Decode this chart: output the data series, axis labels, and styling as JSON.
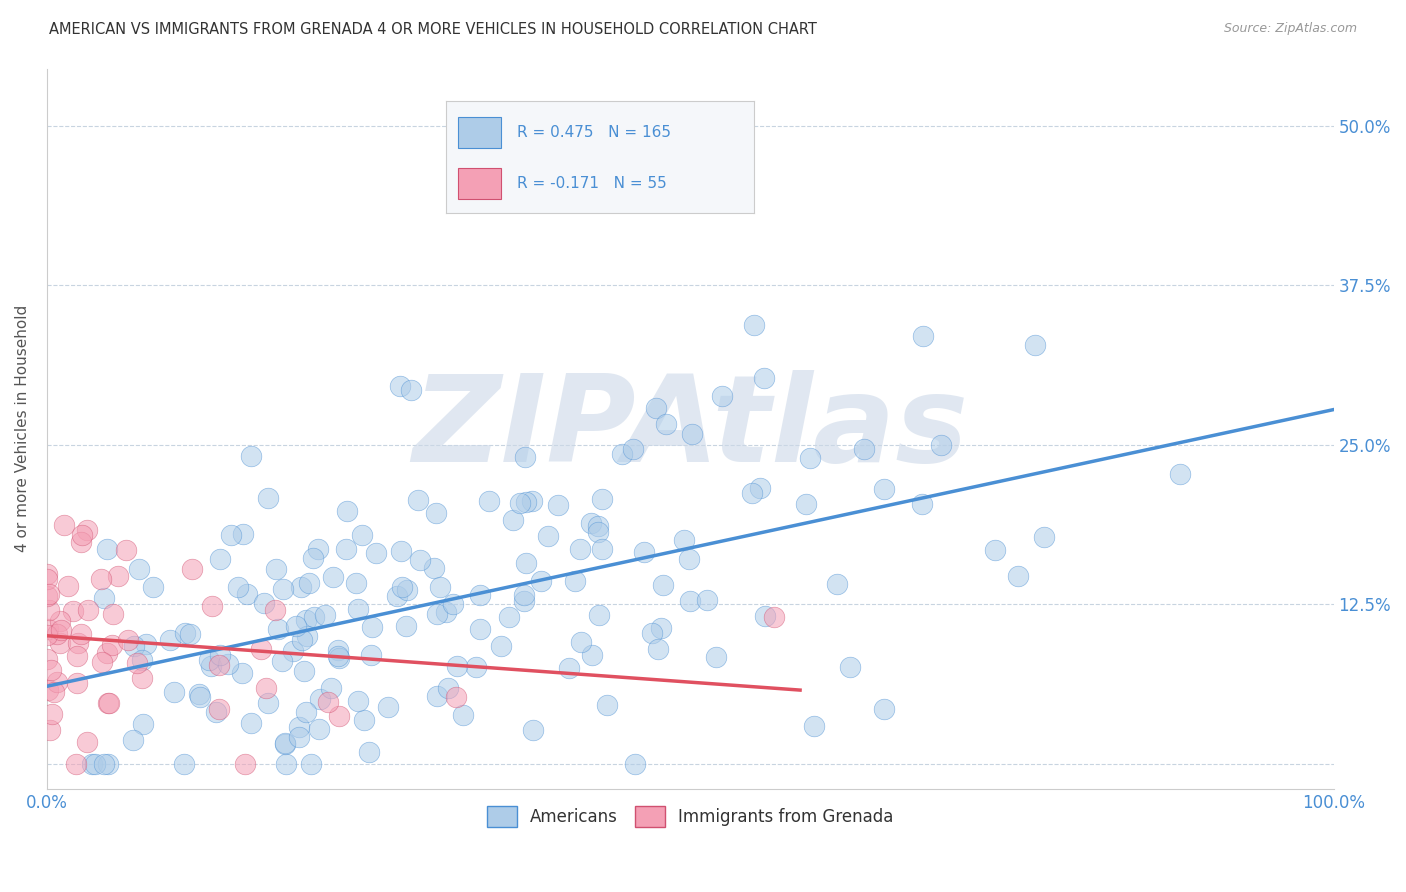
{
  "title": "AMERICAN VS IMMIGRANTS FROM GRENADA 4 OR MORE VEHICLES IN HOUSEHOLD CORRELATION CHART",
  "source": "Source: ZipAtlas.com",
  "ylabel": "4 or more Vehicles in Household",
  "xlim": [
    0,
    1.0
  ],
  "ylim": [
    -0.02,
    0.545
  ],
  "xticks": [
    0.0,
    0.1,
    0.2,
    0.3,
    0.4,
    0.5,
    0.6,
    0.7,
    0.8,
    0.9,
    1.0
  ],
  "xticklabels": [
    "0.0%",
    "",
    "",
    "",
    "",
    "",
    "",
    "",
    "",
    "",
    "100.0%"
  ],
  "ytick_positions": [
    0.0,
    0.125,
    0.25,
    0.375,
    0.5
  ],
  "yticklabels": [
    "",
    "12.5%",
    "25.0%",
    "37.5%",
    "50.0%"
  ],
  "r_american": 0.475,
  "n_american": 165,
  "r_grenada": -0.171,
  "n_grenada": 55,
  "american_color": "#aecce8",
  "grenada_color": "#f4a0b5",
  "trendline_american_color": "#4a8fd4",
  "trendline_grenada_color": "#e05060",
  "watermark": "ZIPAtlas",
  "watermark_color": "#ccd8e8",
  "title_color": "#333333",
  "source_color": "#999999",
  "label_color": "#4a8fd4",
  "grid_color": "#c8d4e0",
  "background_color": "#ffffff"
}
